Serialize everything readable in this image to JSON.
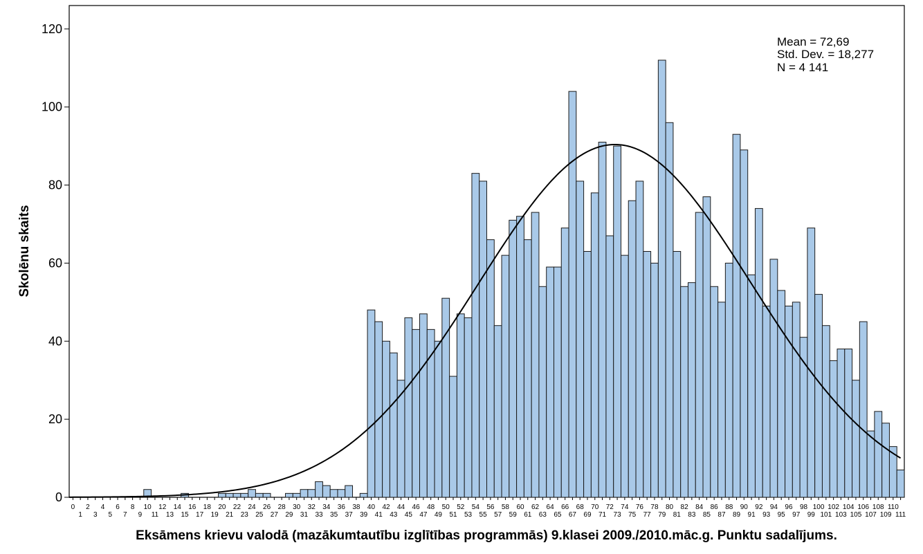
{
  "chart_data": {
    "type": "bar",
    "xlabel": "Eksāmens krievu valodā (mazākumtautību izglītības programmās) 9.klasei 2009./2010.māc.g. Punktu sadalījums.",
    "ylabel": "Skolēnu skaits",
    "ylim": [
      0,
      126
    ],
    "yticks": [
      0,
      20,
      40,
      60,
      80,
      100,
      120
    ],
    "categories": [
      0,
      1,
      2,
      3,
      4,
      5,
      6,
      7,
      8,
      9,
      10,
      11,
      12,
      13,
      14,
      15,
      16,
      17,
      18,
      19,
      20,
      21,
      22,
      23,
      24,
      25,
      26,
      27,
      28,
      29,
      30,
      31,
      32,
      33,
      34,
      35,
      36,
      37,
      38,
      39,
      40,
      41,
      42,
      43,
      44,
      45,
      46,
      47,
      48,
      49,
      50,
      51,
      52,
      53,
      54,
      55,
      56,
      57,
      58,
      59,
      60,
      61,
      62,
      63,
      64,
      65,
      66,
      67,
      68,
      69,
      70,
      71,
      72,
      73,
      74,
      75,
      76,
      77,
      78,
      79,
      80,
      81,
      82,
      83,
      84,
      85,
      86,
      87,
      88,
      89,
      90,
      91,
      92,
      93,
      94,
      95,
      96,
      97,
      98,
      99,
      100,
      101,
      102,
      103,
      104,
      105,
      106,
      107,
      108,
      109,
      110,
      111
    ],
    "values": [
      0,
      0,
      0,
      0,
      0,
      0,
      0,
      0,
      0,
      0,
      2,
      0,
      0,
      0,
      0,
      1,
      0,
      0,
      0,
      0,
      1,
      1,
      1,
      1,
      2,
      1,
      1,
      0,
      0,
      1,
      1,
      2,
      2,
      4,
      3,
      2,
      2,
      3,
      0,
      1,
      48,
      45,
      40,
      37,
      30,
      46,
      43,
      47,
      43,
      40,
      51,
      31,
      47,
      46,
      83,
      81,
      66,
      44,
      62,
      71,
      72,
      66,
      73,
      54,
      59,
      59,
      69,
      104,
      81,
      63,
      78,
      91,
      67,
      90,
      62,
      76,
      81,
      63,
      60,
      112,
      96,
      63,
      54,
      55,
      73,
      77,
      54,
      50,
      60,
      93,
      89,
      57,
      74,
      49,
      61,
      53,
      49,
      50,
      41,
      69,
      52,
      44,
      35,
      38,
      38,
      30,
      45,
      17,
      22,
      19,
      13,
      7
    ],
    "normal_curve": {
      "mean": 72.69,
      "std_dev": 18.277,
      "n": 4141
    },
    "stats": {
      "mean_text": "Mean = 72,69",
      "std_text": "Std. Dev. = 18,277",
      "n_text": "N = 4 141"
    },
    "bar_color": "#a9c9e8",
    "edge_color": "#1a1a1a",
    "grid": false,
    "legend": "none"
  }
}
